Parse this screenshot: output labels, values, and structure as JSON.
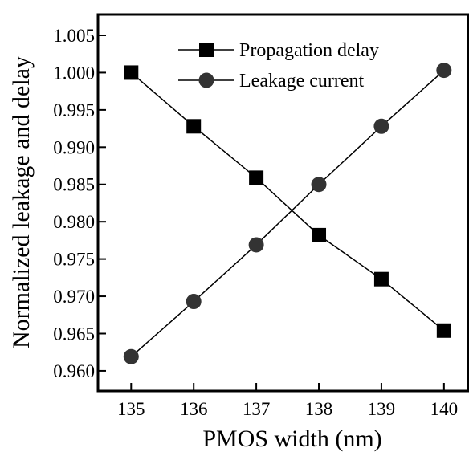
{
  "chart_data": {
    "type": "line",
    "xlabel": "PMOS width (nm)",
    "ylabel": "Normalized leakage and delay",
    "x": [
      135,
      136,
      137,
      138,
      139,
      140
    ],
    "series": [
      {
        "name": "Propagation delay",
        "color": "#000000",
        "marker": "square",
        "values": [
          1.0,
          0.9928,
          0.9859,
          0.9782,
          0.9723,
          0.9654
        ]
      },
      {
        "name": "Leakage current",
        "color": "#333333",
        "marker": "circle",
        "values": [
          0.9619,
          0.9693,
          0.9769,
          0.985,
          0.9928,
          1.0003
        ]
      }
    ],
    "xlim": [
      134.47,
      140.4
    ],
    "xticks": [
      135,
      136,
      137,
      138,
      139,
      140
    ],
    "ylim": [
      0.9573,
      1.0078
    ],
    "yticks": [
      {
        "value": 0.96,
        "label": "0.960"
      },
      0.965,
      {
        "value": 0.97,
        "label": "0.970"
      },
      0.975,
      {
        "value": 0.98,
        "label": "0.980"
      },
      0.985,
      {
        "value": 0.99,
        "label": "0.990"
      },
      0.995,
      {
        "value": 1,
        "label": "1.000"
      },
      1.005
    ],
    "legend": "upper center"
  }
}
